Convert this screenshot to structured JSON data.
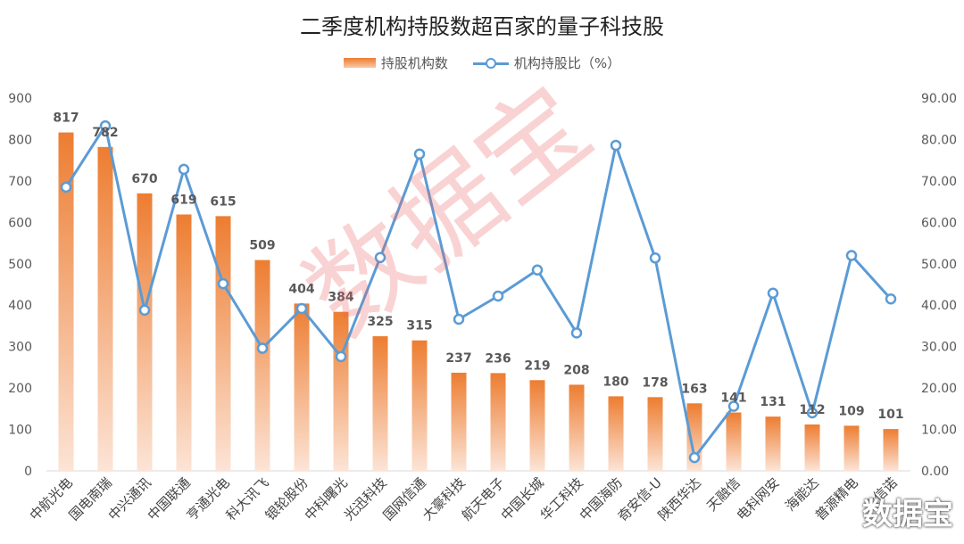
{
  "chart_data": {
    "type": "bar",
    "title": "二季度机构持股数超百家的量子科技股",
    "legend_position": "top",
    "categories": [
      "中航光电",
      "国电南瑞",
      "中兴通讯",
      "中国联通",
      "亨通光电",
      "科大讯飞",
      "银轮股份",
      "中科曙光",
      "光迅科技",
      "国网信通",
      "大豪科技",
      "航天电子",
      "中国长城",
      "华工科技",
      "中国海防",
      "奇安信-U",
      "陕西华达",
      "天融信",
      "电科网安",
      "海能达",
      "普源精电",
      "金信诺"
    ],
    "series": [
      {
        "name": "持股机构数",
        "type": "bar",
        "axis": "left",
        "values": [
          817,
          782,
          670,
          619,
          615,
          509,
          404,
          384,
          325,
          315,
          237,
          236,
          219,
          208,
          180,
          178,
          163,
          141,
          131,
          112,
          109,
          101
        ]
      },
      {
        "name": "机构持股比（%）",
        "type": "line",
        "axis": "right",
        "values": [
          68.5,
          83.3,
          38.8,
          72.8,
          45.2,
          29.6,
          39.2,
          27.6,
          51.5,
          76.5,
          36.6,
          42.2,
          48.5,
          33.3,
          78.6,
          51.4,
          3.2,
          15.6,
          42.9,
          14.0,
          52.0,
          41.5
        ]
      }
    ],
    "y_left": {
      "min": 0,
      "max": 900,
      "step": 100,
      "ticks": [
        "0",
        "100",
        "200",
        "300",
        "400",
        "500",
        "600",
        "700",
        "800",
        "900"
      ]
    },
    "y_right": {
      "min": 0,
      "max": 90,
      "step": 10,
      "ticks": [
        "0.00",
        "10.00",
        "20.00",
        "30.00",
        "40.00",
        "50.00",
        "60.00",
        "70.00",
        "80.00",
        "90.00"
      ]
    },
    "grid": false,
    "colors": {
      "bar_top": "#ED7D31",
      "bar_bottom": "#FCE4D6",
      "line": "#5B9BD5",
      "axis_text": "#595959",
      "label_text": "#595959"
    }
  },
  "watermark": "数据宝",
  "logo": "数据宝"
}
